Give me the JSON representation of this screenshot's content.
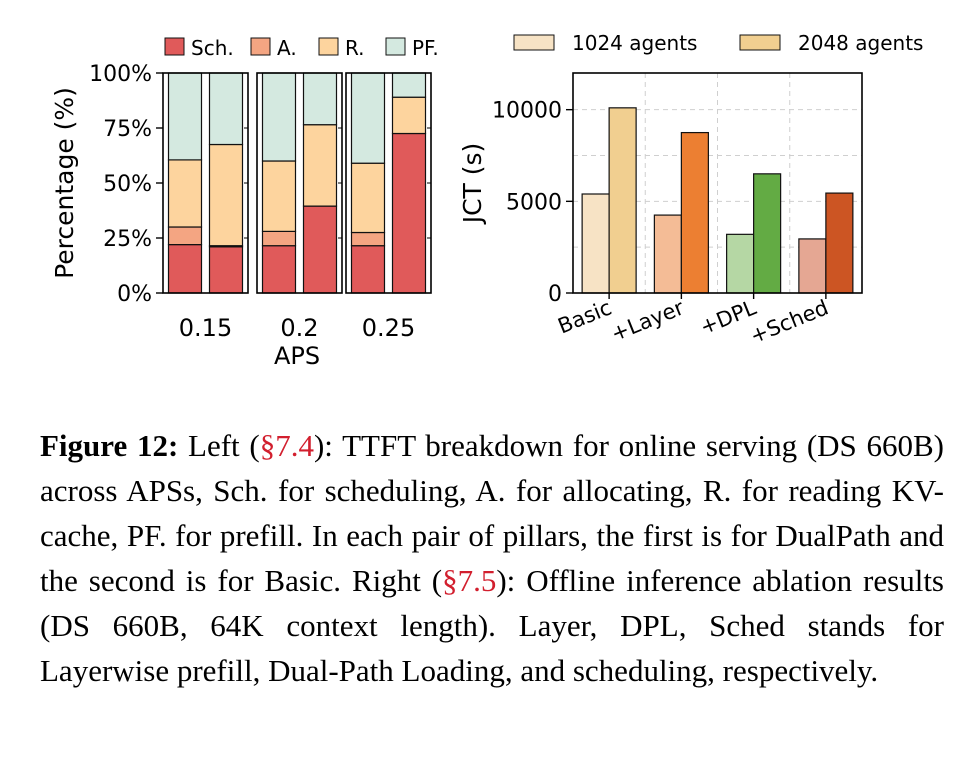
{
  "chart_data": [
    {
      "type": "bar",
      "stacked": true,
      "title": "",
      "xlabel": "APS",
      "ylabel": "Percentage (%)",
      "ylim": [
        0,
        100
      ],
      "yticks": [
        "0%",
        "25%",
        "50%",
        "75%",
        "100%"
      ],
      "groups": [
        "0.15",
        "0.2",
        "0.25"
      ],
      "bars_per_group": 2,
      "legend": {
        "position": "top"
      },
      "series": [
        {
          "name": "Sch.",
          "color": "#e05a5a",
          "values": [
            [
              22,
              21
            ],
            [
              21.5,
              39.5
            ],
            [
              21.5,
              72.5
            ]
          ]
        },
        {
          "name": "A.",
          "color": "#f4a582",
          "values": [
            [
              8,
              0.5
            ],
            [
              6.5,
              0
            ],
            [
              6,
              0
            ]
          ]
        },
        {
          "name": "R.",
          "color": "#fdd49e",
          "values": [
            [
              30.5,
              46
            ],
            [
              32,
              37
            ],
            [
              31.5,
              16.5
            ]
          ]
        },
        {
          "name": "PF.",
          "color": "#d4e9e0",
          "values": [
            [
              39.5,
              32.5
            ],
            [
              40,
              23.5
            ],
            [
              41,
              11
            ]
          ]
        }
      ]
    },
    {
      "type": "bar",
      "title": "",
      "xlabel": "",
      "ylabel": "JCT (s)",
      "ylim": [
        0,
        12000
      ],
      "yticks": [
        0,
        5000,
        10000
      ],
      "grid": true,
      "legend": {
        "position": "top"
      },
      "categories": [
        "Basic",
        "+Layer",
        "+DPL",
        "+Sched"
      ],
      "series": [
        {
          "name": "1024 agents",
          "values": [
            5400,
            4250,
            3200,
            2950
          ],
          "colors": [
            "#f7e3c5",
            "#f4bc96",
            "#b5d7a4",
            "#e5a793"
          ]
        },
        {
          "name": "2048 agents",
          "values": [
            10100,
            8750,
            6500,
            5450
          ],
          "colors": [
            "#f1cf90",
            "#ec7f32",
            "#63ab44",
            "#cc5523"
          ]
        }
      ],
      "legend_colors": [
        "#f7e3c5",
        "#f1cf90"
      ]
    }
  ],
  "caption": {
    "label": "Figure 12:",
    "part1": " Left (",
    "ref1": "§7.4",
    "part2": "): TTFT breakdown for online serving (DS 660B) across APSs, Sch. for scheduling, A. for allocating, R. for reading KV-cache, PF. for prefill. In each pair of pillars, the first is for DualPath and the second is for Basic. Right (",
    "ref2": "§7.5",
    "part3": "): Offline inference ablation results (DS 660B, 64K context length). Layer, DPL, Sched stands for Layerwise prefill, Dual-Path Loading, and scheduling, respectively."
  }
}
